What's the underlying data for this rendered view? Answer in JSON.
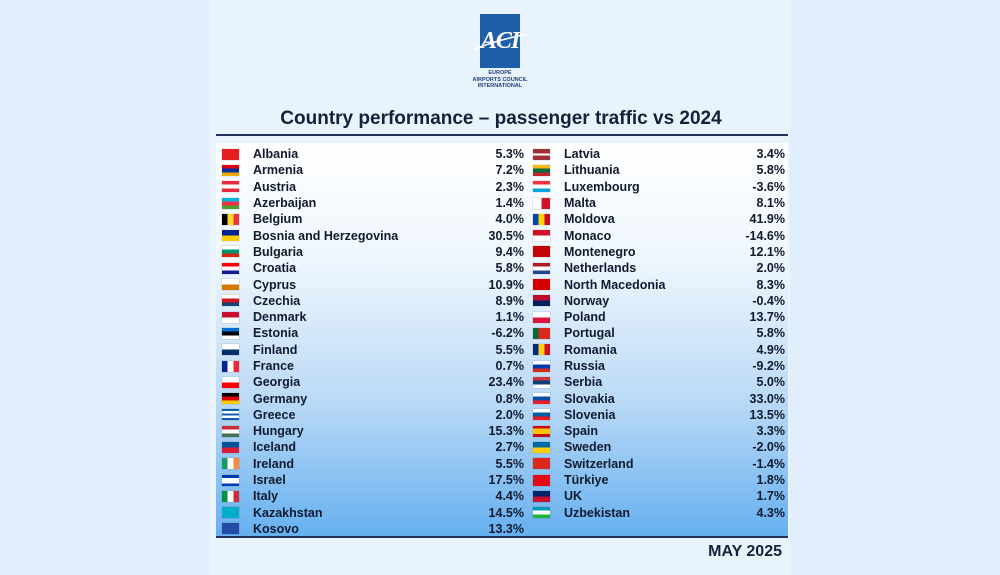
{
  "logo": {
    "mark": "ACI",
    "region": "EUROPE",
    "line1": "AIRPORTS COUNCIL",
    "line2": "INTERNATIONAL"
  },
  "title": "Country performance – passenger traffic vs 2024",
  "date_label": "MAY 2025",
  "chart_data": {
    "type": "table",
    "title": "Country performance – passenger traffic vs 2024",
    "columns": [
      [
        {
          "country": "Albania",
          "value": "5.3%",
          "flag": [
            "#e41e20"
          ]
        },
        {
          "country": "Armenia",
          "value": "7.2%",
          "flag": [
            "#d90012",
            "#0033a0",
            "#f2a800"
          ]
        },
        {
          "country": "Austria",
          "value": "2.3%",
          "flag": [
            "#ed2939",
            "#ffffff",
            "#ed2939"
          ]
        },
        {
          "country": "Azerbaijan",
          "value": "1.4%",
          "flag": [
            "#00b5e2",
            "#ef3340",
            "#509e2f"
          ]
        },
        {
          "country": "Belgium",
          "value": "4.0%",
          "flag": [
            "#000000",
            "#fdda24",
            "#ef3340"
          ],
          "dir": "v"
        },
        {
          "country": "Bosnia and Herzegovina",
          "value": "30.5%",
          "flag": [
            "#002395",
            "#fecb00"
          ]
        },
        {
          "country": "Bulgaria",
          "value": "9.4%",
          "flag": [
            "#ffffff",
            "#00966e",
            "#d62612"
          ]
        },
        {
          "country": "Croatia",
          "value": "5.8%",
          "flag": [
            "#ff0000",
            "#ffffff",
            "#171796"
          ]
        },
        {
          "country": "Cyprus",
          "value": "10.9%",
          "flag": [
            "#ffffff",
            "#d57800"
          ]
        },
        {
          "country": "Czechia",
          "value": "8.9%",
          "flag": [
            "#ffffff",
            "#d7141a",
            "#11457e"
          ]
        },
        {
          "country": "Denmark",
          "value": "1.1%",
          "flag": [
            "#c8102e",
            "#ffffff"
          ]
        },
        {
          "country": "Estonia",
          "value": "-6.2%",
          "flag": [
            "#0072ce",
            "#000000",
            "#ffffff"
          ]
        },
        {
          "country": "Finland",
          "value": "5.5%",
          "flag": [
            "#ffffff",
            "#002f6c"
          ]
        },
        {
          "country": "France",
          "value": "0.7%",
          "flag": [
            "#002395",
            "#ffffff",
            "#ed2939"
          ],
          "dir": "v"
        },
        {
          "country": "Georgia",
          "value": "23.4%",
          "flag": [
            "#ffffff",
            "#ff0000"
          ]
        },
        {
          "country": "Germany",
          "value": "0.8%",
          "flag": [
            "#000000",
            "#dd0000",
            "#ffce00"
          ]
        },
        {
          "country": "Greece",
          "value": "2.0%",
          "flag": [
            "#0d5eaf",
            "#ffffff",
            "#0d5eaf",
            "#ffffff",
            "#0d5eaf"
          ]
        },
        {
          "country": "Hungary",
          "value": "15.3%",
          "flag": [
            "#ce2939",
            "#ffffff",
            "#477050"
          ]
        },
        {
          "country": "Iceland",
          "value": "2.7%",
          "flag": [
            "#02529c",
            "#dc1e35"
          ]
        },
        {
          "country": "Ireland",
          "value": "5.5%",
          "flag": [
            "#169b62",
            "#ffffff",
            "#ff883e"
          ],
          "dir": "v"
        },
        {
          "country": "Israel",
          "value": "17.5%",
          "flag": [
            "#0038b8",
            "#ffffff",
            "#ffffff",
            "#0038b8"
          ]
        },
        {
          "country": "Italy",
          "value": "4.4%",
          "flag": [
            "#009246",
            "#ffffff",
            "#ce2b37"
          ],
          "dir": "v"
        },
        {
          "country": "Kazakhstan",
          "value": "14.5%",
          "flag": [
            "#00afca"
          ]
        },
        {
          "country": "Kosovo",
          "value": "13.3%",
          "flag": [
            "#244aa5"
          ]
        }
      ],
      [
        {
          "country": "Latvia",
          "value": "3.4%",
          "flag": [
            "#9e3039",
            "#9e3039",
            "#ffffff",
            "#9e3039",
            "#9e3039"
          ]
        },
        {
          "country": "Lithuania",
          "value": "5.8%",
          "flag": [
            "#fdb913",
            "#006a44",
            "#c1272d"
          ]
        },
        {
          "country": "Luxembourg",
          "value": "-3.6%",
          "flag": [
            "#ef3340",
            "#ffffff",
            "#00a3e0"
          ]
        },
        {
          "country": "Malta",
          "value": "8.1%",
          "flag": [
            "#ffffff",
            "#cf142b"
          ],
          "dir": "v"
        },
        {
          "country": "Moldova",
          "value": "41.9%",
          "flag": [
            "#0046ae",
            "#ffd200",
            "#cc092f"
          ],
          "dir": "v"
        },
        {
          "country": "Monaco",
          "value": "-14.6%",
          "flag": [
            "#ce1126",
            "#ffffff"
          ]
        },
        {
          "country": "Montenegro",
          "value": "12.1%",
          "flag": [
            "#c40308"
          ]
        },
        {
          "country": "Netherlands",
          "value": "2.0%",
          "flag": [
            "#ae1c28",
            "#ffffff",
            "#21468b"
          ]
        },
        {
          "country": "North Macedonia",
          "value": "8.3%",
          "flag": [
            "#d20000"
          ]
        },
        {
          "country": "Norway",
          "value": "-0.4%",
          "flag": [
            "#ba0c2f",
            "#00205b"
          ]
        },
        {
          "country": "Poland",
          "value": "13.7%",
          "flag": [
            "#ffffff",
            "#dc143c"
          ]
        },
        {
          "country": "Portugal",
          "value": "5.8%",
          "flag": [
            "#046a38",
            "#da291c",
            "#da291c"
          ],
          "dir": "v"
        },
        {
          "country": "Romania",
          "value": "4.9%",
          "flag": [
            "#002b7f",
            "#fcd116",
            "#ce1126"
          ],
          "dir": "v"
        },
        {
          "country": "Russia",
          "value": "-9.2%",
          "flag": [
            "#ffffff",
            "#0039a6",
            "#d52b1e"
          ]
        },
        {
          "country": "Serbia",
          "value": "5.0%",
          "flag": [
            "#c6363c",
            "#0c4076",
            "#ffffff"
          ]
        },
        {
          "country": "Slovakia",
          "value": "33.0%",
          "flag": [
            "#ffffff",
            "#0b4ea2",
            "#ee1c25"
          ]
        },
        {
          "country": "Slovenia",
          "value": "13.5%",
          "flag": [
            "#ffffff",
            "#005da4",
            "#ed1c24"
          ]
        },
        {
          "country": "Spain",
          "value": "3.3%",
          "flag": [
            "#c60b1e",
            "#ffc400",
            "#ffc400",
            "#c60b1e"
          ]
        },
        {
          "country": "Sweden",
          "value": "-2.0%",
          "flag": [
            "#006aa7",
            "#fecc02"
          ]
        },
        {
          "country": "Switzerland",
          "value": "-1.4%",
          "flag": [
            "#da291c"
          ]
        },
        {
          "country": "Türkiye",
          "value": "1.8%",
          "flag": [
            "#e30a17"
          ]
        },
        {
          "country": "UK",
          "value": "1.7%",
          "flag": [
            "#012169",
            "#c8102e"
          ]
        },
        {
          "country": "Uzbekistan",
          "value": "4.3%",
          "flag": [
            "#0099b5",
            "#ffffff",
            "#1eb53a"
          ]
        }
      ]
    ]
  }
}
